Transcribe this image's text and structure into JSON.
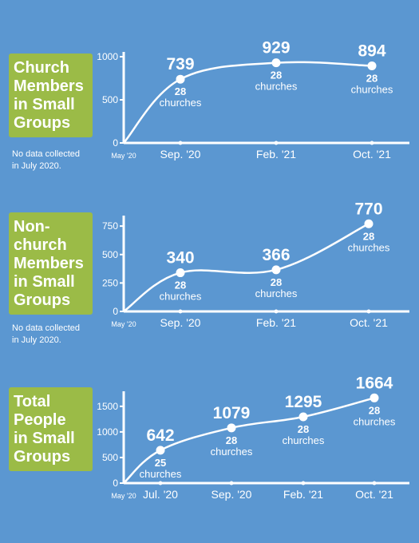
{
  "chart_data": [
    {
      "type": "line",
      "title_lines": [
        "Church",
        "Members",
        "in Small",
        "Groups"
      ],
      "note_lines": [
        "No data collected",
        "in July 2020."
      ],
      "x": [
        "May '20",
        "Sep. '20",
        "Feb. '21",
        "Oct. '21"
      ],
      "x_positions": [
        0,
        4,
        9,
        17
      ],
      "series": [
        {
          "values": [
            0,
            739,
            929,
            894
          ]
        }
      ],
      "value_labels": [
        "",
        "739",
        "929",
        "894"
      ],
      "count_labels": [
        "",
        "28",
        "28",
        "28"
      ],
      "count_unit": "churches",
      "yticks": [
        0,
        500,
        1000
      ],
      "ylim": [
        0,
        1000
      ],
      "xlabels": [
        "May '20",
        "Sep. '20",
        "Feb. '21",
        "Oct. '21"
      ]
    },
    {
      "type": "line",
      "title_lines": [
        "Non-",
        "church",
        "Members",
        "in Small",
        "Groups"
      ],
      "note_lines": [
        "No data collected",
        "in July 2020."
      ],
      "x": [
        "May '20",
        "Sep. '20",
        "Feb. '21",
        "Oct. '21"
      ],
      "x_positions": [
        0,
        4,
        9,
        17
      ],
      "series": [
        {
          "values": [
            0,
            340,
            366,
            770
          ]
        }
      ],
      "value_labels": [
        "",
        "340",
        "366",
        "770"
      ],
      "count_labels": [
        "",
        "28",
        "28",
        "28"
      ],
      "count_unit": "churches",
      "yticks": [
        0,
        250,
        500,
        750
      ],
      "ylim": [
        0,
        800
      ],
      "xlabels": [
        "May '20",
        "Sep. '20",
        "Feb. '21",
        "Oct. '21"
      ]
    },
    {
      "type": "line",
      "title_lines": [
        "Total",
        "People",
        "in Small",
        "Groups"
      ],
      "note_lines": [],
      "x": [
        "May '20",
        "Jul. '20",
        "Sep. '20",
        "Feb. '21",
        "Oct. '21"
      ],
      "x_positions": [
        0,
        2,
        4,
        9,
        17
      ],
      "series": [
        {
          "values": [
            0,
            642,
            1079,
            1295,
            1664
          ]
        }
      ],
      "value_labels": [
        "",
        "642",
        "1079",
        "1295",
        "1664"
      ],
      "count_labels": [
        "",
        "25",
        "28",
        "28",
        "28"
      ],
      "count_unit": "churches",
      "yticks": [
        0,
        500,
        1000,
        1500
      ],
      "ylim": [
        0,
        1700
      ],
      "xlabels": [
        "May '20",
        "Jul. '20",
        "Sep. '20",
        "Feb. '21",
        "Oct. '21"
      ]
    }
  ],
  "colors": {
    "background": "#5b97d1",
    "title_box": "#9bbb47",
    "line": "#ffffff"
  }
}
